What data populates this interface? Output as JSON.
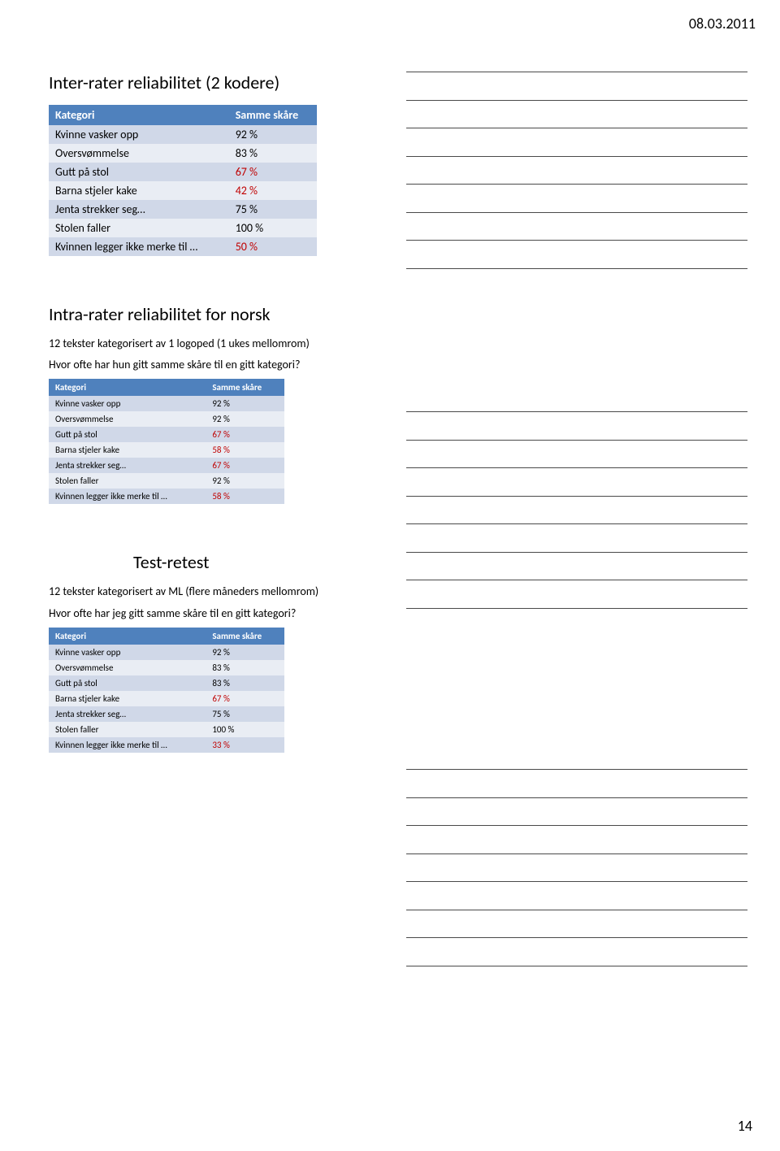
{
  "header": {
    "date": "08.03.2011",
    "page_number": "14"
  },
  "sections": [
    {
      "title": "Inter-rater reliabilitet (2 kodere)",
      "title_class": "",
      "subtext": [],
      "table_size": "large",
      "header_bg": "#4f81bd",
      "header_fg": "#ffffff",
      "row_odd_bg": "#d0d8e8",
      "row_even_bg": "#e9edf4",
      "red_hex": "#c00000",
      "columns": [
        "Kategori",
        "Samme skåre"
      ],
      "rows": [
        {
          "label": "Kvinne vasker opp",
          "value": "92 %",
          "red": false
        },
        {
          "label": "Oversvømmelse",
          "value": "83 %",
          "red": false
        },
        {
          "label": "Gutt på stol",
          "value": "67 %",
          "red": true
        },
        {
          "label": "Barna stjeler kake",
          "value": "42 %",
          "red": true
        },
        {
          "label": "Jenta strekker seg…",
          "value": "75 %",
          "red": false
        },
        {
          "label": "Stolen faller",
          "value": "100 %",
          "red": false
        },
        {
          "label": "Kvinnen legger ikke merke  til …",
          "value": "50 %",
          "red": true
        }
      ],
      "note_lines": 8
    },
    {
      "title": "Intra-rater reliabilitet for norsk",
      "title_class": "",
      "subtext": [
        "12 tekster kategorisert av 1 logoped (1 ukes mellomrom)",
        "Hvor ofte har hun gitt samme skåre til en gitt kategori?"
      ],
      "table_size": "small",
      "columns": [
        "Kategori",
        "Samme skåre"
      ],
      "rows": [
        {
          "label": "Kvinne vasker opp",
          "value": "92 %",
          "red": false
        },
        {
          "label": "Oversvømmelse",
          "value": "92 %",
          "red": false
        },
        {
          "label": "Gutt på stol",
          "value": "67 %",
          "red": true
        },
        {
          "label": "Barna stjeler kake",
          "value": "58 %",
          "red": true
        },
        {
          "label": "Jenta strekker seg…",
          "value": "67 %",
          "red": true
        },
        {
          "label": "Stolen faller",
          "value": "92 %",
          "red": false
        },
        {
          "label": "Kvinnen legger ikke merke  til …",
          "value": "58 %",
          "red": true
        }
      ],
      "note_lines": 8
    },
    {
      "title": "Test-retest",
      "title_class": "shift",
      "subtext": [
        "12 tekster kategorisert av ML (flere måneders mellomrom)",
        "Hvor ofte har jeg gitt samme skåre til en gitt kategori?"
      ],
      "table_size": "small",
      "columns": [
        "Kategori",
        "Samme skåre"
      ],
      "rows": [
        {
          "label": "Kvinne vasker opp",
          "value": "92 %",
          "red": false
        },
        {
          "label": "Oversvømmelse",
          "value": "83 %",
          "red": false
        },
        {
          "label": "Gutt på stol",
          "value": "83 %",
          "red": false
        },
        {
          "label": "Barna stjeler kake",
          "value": "67 %",
          "red": true
        },
        {
          "label": "Jenta strekker seg…",
          "value": "75 %",
          "red": false
        },
        {
          "label": "Stolen faller",
          "value": "100 %",
          "red": false
        },
        {
          "label": "Kvinnen legger ikke merke  til …",
          "value": "33 %",
          "red": true
        }
      ],
      "note_lines": 8
    }
  ]
}
